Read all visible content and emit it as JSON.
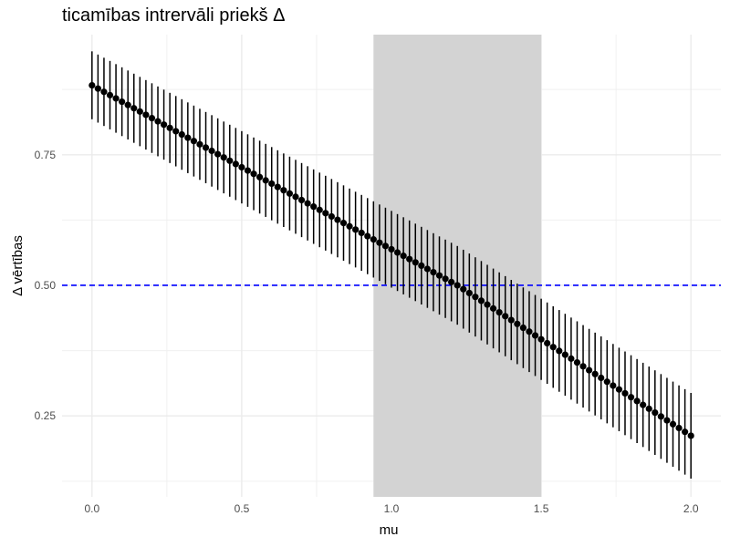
{
  "chart_data": {
    "type": "scatter",
    "title": "ticamības intrervāli priekš Δ",
    "xlabel": "mu",
    "ylabel": "Δ vērtības",
    "xlim": [
      -0.1,
      2.1
    ],
    "ylim": [
      0.095,
      0.98
    ],
    "x_ticks": [
      "0.0",
      "0.5",
      "1.0",
      "1.5",
      "2.0"
    ],
    "x_tick_values": [
      0.0,
      0.5,
      1.0,
      1.5,
      2.0
    ],
    "y_ticks": [
      "0.25",
      "0.50",
      "0.75"
    ],
    "y_tick_values": [
      0.25,
      0.5,
      0.75
    ],
    "grid": true,
    "shaded_region": {
      "x_start": 0.94,
      "x_end": 1.5,
      "color": "#d3d3d3"
    },
    "reference_line": {
      "y": 0.5,
      "style": "dashed",
      "color": "#0000ff"
    },
    "points": {
      "x_start": 0.0,
      "x_end": 2.0,
      "count": 101,
      "center_start": 0.883,
      "center_mid": 0.5,
      "mid_x": 1.22,
      "center_end": 0.212,
      "ci_half_width_start": 0.065,
      "ci_half_width_end": 0.082,
      "color": "#000000"
    }
  }
}
